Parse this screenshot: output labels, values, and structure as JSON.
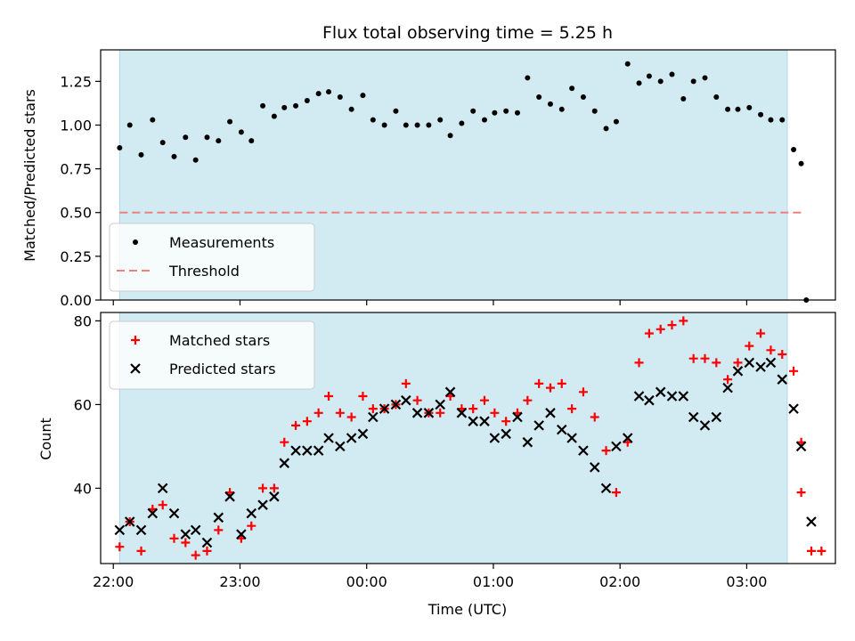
{
  "chart_data": {
    "title": "Flux total observing time = 5.25 h",
    "xlabel": "Time (UTC)",
    "x_ticks": [
      "22:00",
      "23:00",
      "00:00",
      "01:00",
      "02:00",
      "03:00"
    ],
    "x_range_hours": [
      -0.1,
      5.7
    ],
    "observing_window_hours": [
      0.05,
      5.32
    ],
    "observing_window_color": "#add8e6",
    "panels": [
      {
        "type": "scatter",
        "ylabel": "Matched/Predicted stars",
        "ylim": [
          0,
          1.43
        ],
        "y_ticks": [
          "0.00",
          "0.25",
          "0.50",
          "0.75",
          "1.00",
          "1.25"
        ],
        "y_tick_values": [
          0,
          0.25,
          0.5,
          0.75,
          1.0,
          1.25
        ],
        "legend_position": "lower-left",
        "series": [
          {
            "name": "Measurements",
            "marker": "dot",
            "color": "#000000",
            "x": [
              0.05,
              0.13,
              0.22,
              0.31,
              0.39,
              0.48,
              0.57,
              0.65,
              0.74,
              0.83,
              0.92,
              1.01,
              1.09,
              1.18,
              1.27,
              1.35,
              1.44,
              1.53,
              1.62,
              1.7,
              1.79,
              1.88,
              1.97,
              2.05,
              2.14,
              2.23,
              2.31,
              2.4,
              2.49,
              2.58,
              2.66,
              2.75,
              2.84,
              2.93,
              3.01,
              3.1,
              3.19,
              3.27,
              3.36,
              3.45,
              3.54,
              3.62,
              3.71,
              3.8,
              3.89,
              3.97,
              4.06,
              4.15,
              4.23,
              4.32,
              4.41,
              4.5,
              4.58,
              4.67,
              4.76,
              4.85,
              4.93,
              5.02,
              5.11,
              5.19,
              5.28,
              5.37,
              5.43
            ],
            "y": [
              0.87,
              1.0,
              0.83,
              1.03,
              0.9,
              0.82,
              0.93,
              0.8,
              0.93,
              0.91,
              1.02,
              0.96,
              0.91,
              1.11,
              1.05,
              1.1,
              1.11,
              1.14,
              1.18,
              1.19,
              1.16,
              1.09,
              1.17,
              1.03,
              1.0,
              1.08,
              1.0,
              1.0,
              1.0,
              1.03,
              0.94,
              1.01,
              1.08,
              1.03,
              1.07,
              1.08,
              1.07,
              1.27,
              1.16,
              1.12,
              1.09,
              1.21,
              1.16,
              1.08,
              0.98,
              1.02,
              1.35,
              1.24,
              1.28,
              1.25,
              1.29,
              1.15,
              1.25,
              1.27,
              1.16,
              1.09,
              1.09,
              1.1,
              1.06,
              1.03,
              1.03,
              0.86,
              0.78
            ]
          },
          {
            "name": "Threshold",
            "marker": "dashed-line",
            "color": "#f08080",
            "x": [
              0.05,
              5.43
            ],
            "y": [
              0.5,
              0.5
            ]
          }
        ],
        "extra_points": [
          {
            "x": 5.47,
            "y": 0.0
          }
        ]
      },
      {
        "type": "scatter",
        "ylabel": "Count",
        "ylim": [
          22,
          82
        ],
        "y_ticks": [
          "40",
          "60",
          "80"
        ],
        "y_tick_values": [
          40,
          60,
          80
        ],
        "legend_position": "upper-left",
        "series": [
          {
            "name": "Matched stars",
            "marker": "plus",
            "color": "#ff0000",
            "x": [
              0.05,
              0.13,
              0.22,
              0.31,
              0.39,
              0.48,
              0.57,
              0.65,
              0.74,
              0.83,
              0.92,
              1.01,
              1.09,
              1.18,
              1.27,
              1.35,
              1.44,
              1.53,
              1.62,
              1.7,
              1.79,
              1.88,
              1.97,
              2.05,
              2.14,
              2.23,
              2.31,
              2.4,
              2.49,
              2.58,
              2.66,
              2.75,
              2.84,
              2.93,
              3.01,
              3.1,
              3.19,
              3.27,
              3.36,
              3.45,
              3.54,
              3.62,
              3.71,
              3.8,
              3.89,
              3.97,
              4.06,
              4.15,
              4.23,
              4.32,
              4.41,
              4.5,
              4.58,
              4.67,
              4.76,
              4.85,
              4.93,
              5.02,
              5.11,
              5.19,
              5.28,
              5.37,
              5.43
            ],
            "y": [
              26,
              32,
              25,
              35,
              36,
              28,
              27,
              24,
              25,
              30,
              39,
              28,
              31,
              40,
              40,
              51,
              55,
              56,
              58,
              62,
              58,
              57,
              62,
              59,
              59,
              60,
              65,
              61,
              58,
              58,
              62,
              59,
              59,
              61,
              58,
              56,
              58,
              61,
              65,
              64,
              65,
              59,
              63,
              57,
              49,
              39,
              51,
              70,
              77,
              78,
              79,
              80,
              71,
              71,
              70,
              66,
              70,
              74,
              77,
              73,
              72,
              68,
              51
            ]
          },
          {
            "name": "Predicted stars",
            "marker": "x",
            "color": "#000000",
            "x": [
              0.05,
              0.13,
              0.22,
              0.31,
              0.39,
              0.48,
              0.57,
              0.65,
              0.74,
              0.83,
              0.92,
              1.01,
              1.09,
              1.18,
              1.27,
              1.35,
              1.44,
              1.53,
              1.62,
              1.7,
              1.79,
              1.88,
              1.97,
              2.05,
              2.14,
              2.23,
              2.31,
              2.4,
              2.49,
              2.58,
              2.66,
              2.75,
              2.84,
              2.93,
              3.01,
              3.1,
              3.19,
              3.27,
              3.36,
              3.45,
              3.54,
              3.62,
              3.71,
              3.8,
              3.89,
              3.97,
              4.06,
              4.15,
              4.23,
              4.32,
              4.41,
              4.5,
              4.58,
              4.67,
              4.76,
              4.85,
              4.93,
              5.02,
              5.11,
              5.19,
              5.28,
              5.37,
              5.43
            ],
            "y": [
              30,
              32,
              30,
              34,
              40,
              34,
              29,
              30,
              27,
              33,
              38,
              29,
              34,
              36,
              38,
              46,
              49,
              49,
              49,
              52,
              50,
              52,
              53,
              57,
              59,
              60,
              61,
              58,
              58,
              60,
              63,
              58,
              56,
              56,
              52,
              53,
              57,
              51,
              55,
              58,
              54,
              52,
              49,
              45,
              40,
              50,
              52,
              62,
              61,
              63,
              62,
              62,
              57,
              55,
              57,
              64,
              68,
              70,
              69,
              70,
              66,
              59,
              50
            ]
          }
        ],
        "extra_points": [
          {
            "series": "Matched stars",
            "x": [
              5.43,
              5.51,
              5.59
            ],
            "y": [
              39,
              25,
              25
            ]
          },
          {
            "series": "Predicted stars",
            "x": [
              5.51
            ],
            "y": [
              32
            ]
          }
        ]
      }
    ]
  }
}
